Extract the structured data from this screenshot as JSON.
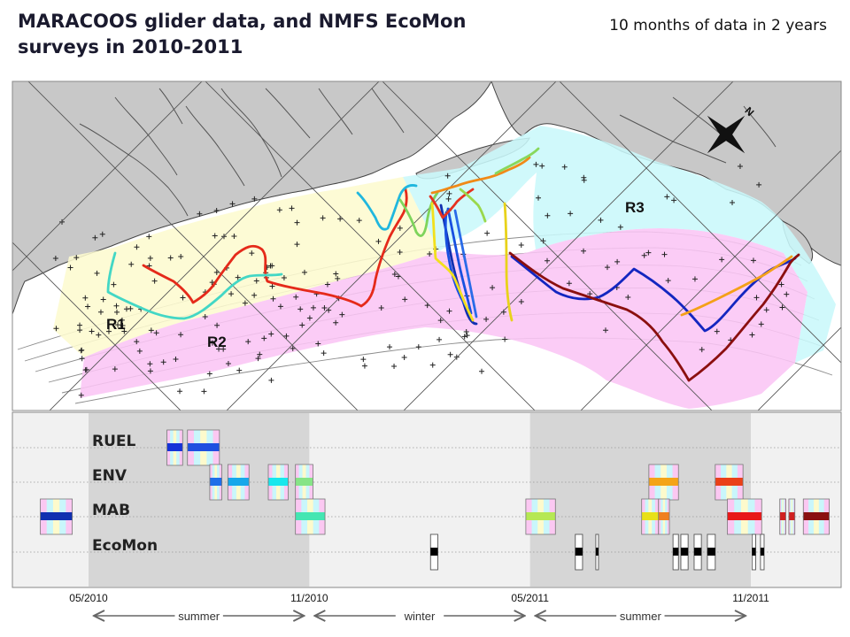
{
  "header": {
    "title": "MARACOOS glider data, and NMFS EcoMon surveys in 2010-2011",
    "subtitle": "10 months of data in 2 years"
  },
  "map": {
    "regions": [
      {
        "label": "R1",
        "color": "#fdfbcf"
      },
      {
        "label": "R2",
        "color": "#fbc5f5"
      },
      {
        "label": "R3",
        "color": "#c9f8fb"
      }
    ],
    "land_color": "#c8c8c8",
    "sea_color": "#ffffff",
    "north_arrow_label": "N"
  },
  "chart_data": {
    "type": "timeline",
    "title": "",
    "rows": [
      "RUEL",
      "ENV",
      "MAB",
      "EcoMon"
    ],
    "x_axis": {
      "start": "2010-03",
      "end": "2012-01",
      "ticks": [
        "05/2010",
        "11/2010",
        "05/2011",
        "11/2011"
      ]
    },
    "shaded_periods": [
      {
        "start": "2010-05",
        "end": "2010-11"
      },
      {
        "start": "2011-05",
        "end": "2011-11"
      }
    ],
    "seasons": [
      {
        "label": "summer",
        "start": "2010-05",
        "end": "2010-11"
      },
      {
        "label": "winter",
        "start": "2010-11",
        "end": "2011-05"
      },
      {
        "label": "summer",
        "start": "2011-05",
        "end": "2011-11"
      }
    ],
    "glider_deployments": [
      {
        "row": "RUEL",
        "start": "2010-07-05",
        "end": "2010-07-18",
        "color": "#1532d8"
      },
      {
        "row": "RUEL",
        "start": "2010-07-22",
        "end": "2010-08-18",
        "color": "#1e4fe0"
      },
      {
        "row": "ENV",
        "start": "2010-08-10",
        "end": "2010-08-20",
        "color": "#1f6ee8"
      },
      {
        "row": "ENV",
        "start": "2010-08-25",
        "end": "2010-09-12",
        "color": "#17a7ea"
      },
      {
        "row": "ENV",
        "start": "2010-09-28",
        "end": "2010-10-14",
        "color": "#18e7ec"
      },
      {
        "row": "ENV",
        "start": "2010-10-20",
        "end": "2010-11-04",
        "color": "#86e486"
      },
      {
        "row": "MAB",
        "start": "2010-03-22",
        "end": "2010-04-18",
        "color": "#1030b0"
      },
      {
        "row": "MAB",
        "start": "2010-10-20",
        "end": "2010-11-14",
        "color": "#44e6b2"
      },
      {
        "row": "MAB",
        "start": "2011-04-28",
        "end": "2011-05-22",
        "color": "#b6e854"
      },
      {
        "row": "ENV",
        "start": "2011-08-08",
        "end": "2011-09-02",
        "color": "#f4a418"
      },
      {
        "row": "ENV",
        "start": "2011-10-02",
        "end": "2011-10-25",
        "color": "#ea4018"
      },
      {
        "row": "MAB",
        "start": "2011-08-02",
        "end": "2011-08-16",
        "color": "#e8e018"
      },
      {
        "row": "MAB",
        "start": "2011-08-16",
        "end": "2011-08-25",
        "color": "#f08020"
      },
      {
        "row": "MAB",
        "start": "2011-10-12",
        "end": "2011-11-10",
        "color": "#e81818"
      },
      {
        "row": "MAB",
        "start": "2011-11-25",
        "end": "2011-11-30",
        "color": "#d02020"
      },
      {
        "row": "MAB",
        "start": "2011-12-02",
        "end": "2011-12-07",
        "color": "#d02020"
      },
      {
        "row": "MAB",
        "start": "2011-12-14",
        "end": "2012-01-05",
        "color": "#8a1010"
      }
    ],
    "ecomon_surveys": [
      {
        "start": "2011-02-10",
        "end": "2011-02-16"
      },
      {
        "start": "2011-06-08",
        "end": "2011-06-14"
      },
      {
        "start": "2011-06-25",
        "end": "2011-06-26"
      },
      {
        "start": "2011-08-28",
        "end": "2011-09-02"
      },
      {
        "start": "2011-09-04",
        "end": "2011-09-10"
      },
      {
        "start": "2011-09-15",
        "end": "2011-09-21"
      },
      {
        "start": "2011-09-26",
        "end": "2011-10-02"
      },
      {
        "start": "2011-11-02",
        "end": "2011-11-05"
      },
      {
        "start": "2011-11-09",
        "end": "2011-11-12"
      }
    ]
  }
}
